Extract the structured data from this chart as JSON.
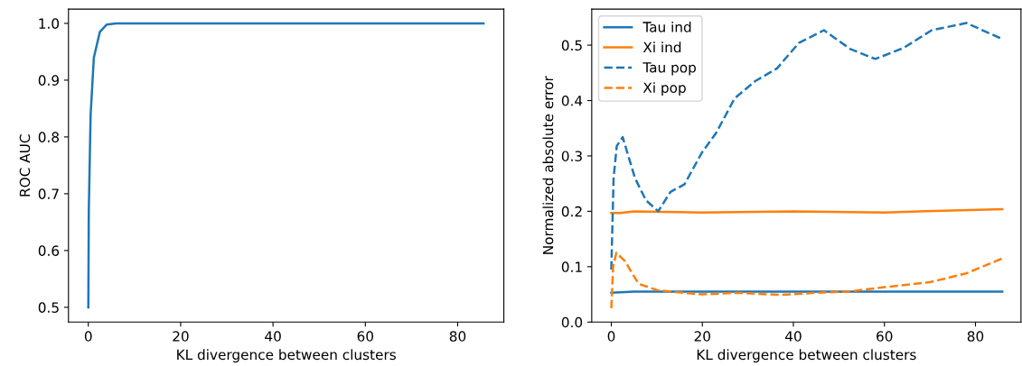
{
  "chart_data": [
    {
      "type": "line",
      "xlabel": "KL divergence between clusters",
      "ylabel": "ROC AUC",
      "xlim": [
        -4.3,
        90
      ],
      "ylim": [
        0.474,
        1.025
      ],
      "xticks": [
        0,
        20,
        40,
        60,
        80
      ],
      "yticks": [
        0.5,
        0.6,
        0.7,
        0.8,
        0.9,
        {
          "value": 1,
          "label": "1.0"
        }
      ],
      "grid": false,
      "legend": false,
      "series": [
        {
          "color": "#1f77b4",
          "line_style": "solid",
          "x": [
            0,
            0.1,
            0.5,
            1.2,
            2.5,
            4,
            6,
            85.6
          ],
          "values": [
            0.5,
            0.67,
            0.84,
            0.94,
            0.985,
            0.998,
            1.0,
            1.0
          ]
        }
      ]
    },
    {
      "type": "line",
      "xlabel": "KL divergence between clusters",
      "ylabel": "Normalized absolute error",
      "xlim": [
        -4.3,
        90
      ],
      "ylim": [
        0.0,
        0.565
      ],
      "xticks": [
        0,
        20,
        40,
        60,
        80
      ],
      "yticks": [
        {
          "value": 0,
          "label": "0.0"
        },
        0.1,
        0.2,
        0.3,
        0.4,
        0.5
      ],
      "grid": false,
      "legend": "top left",
      "series": [
        {
          "name": "Tau ind",
          "color": "#1f77b4",
          "line_style": "solid",
          "x": [
            0,
            5,
            40,
            85.9
          ],
          "values": [
            0.053,
            0.055,
            0.055,
            0.055
          ]
        },
        {
          "name": "Xi ind",
          "color": "#ff7f0e",
          "line_style": "solid",
          "x": [
            0,
            2,
            5,
            20,
            40,
            60,
            85.9
          ],
          "values": [
            0.197,
            0.197,
            0.2,
            0.198,
            0.2,
            0.198,
            0.204
          ]
        },
        {
          "name": "Tau pop",
          "color": "#1f77b4",
          "line_style": "dashed",
          "x": [
            0,
            0.5,
            1.2,
            2.5,
            5.2,
            7.6,
            10.3,
            13,
            16.1,
            19.9,
            23,
            27.1,
            31.6,
            36.4,
            41.2,
            46.7,
            52.5,
            58,
            64.2,
            70.4,
            78,
            85.9
          ],
          "values": [
            0.095,
            0.26,
            0.318,
            0.334,
            0.26,
            0.22,
            0.2,
            0.235,
            0.249,
            0.306,
            0.341,
            0.404,
            0.435,
            0.458,
            0.504,
            0.527,
            0.493,
            0.475,
            0.495,
            0.527,
            0.54,
            0.511
          ]
        },
        {
          "name": "Xi pop",
          "color": "#ff7f0e",
          "line_style": "dashed",
          "x": [
            0,
            0.4,
            1.1,
            3,
            6,
            10,
            14,
            20,
            28,
            37,
            45,
            52,
            60,
            70,
            78,
            85.9
          ],
          "values": [
            0.025,
            0.1,
            0.125,
            0.11,
            0.069,
            0.058,
            0.054,
            0.05,
            0.053,
            0.049,
            0.053,
            0.055,
            0.063,
            0.072,
            0.088,
            0.115
          ]
        }
      ]
    }
  ]
}
